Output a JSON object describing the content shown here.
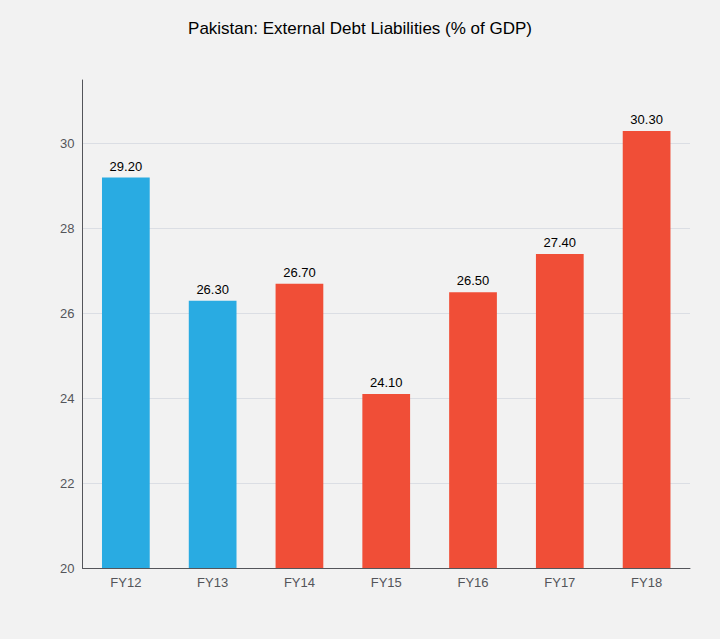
{
  "chart_data": {
    "type": "bar",
    "title": "Pakistan: External Debt Liabilities (% of GDP)",
    "categories": [
      "FY12",
      "FY13",
      "FY14",
      "FY15",
      "FY16",
      "FY17",
      "FY18"
    ],
    "values": [
      29.2,
      26.3,
      26.7,
      24.1,
      26.5,
      27.4,
      30.3
    ],
    "value_labels": [
      "29.20",
      "26.30",
      "26.70",
      "24.10",
      "26.50",
      "27.40",
      "30.30"
    ],
    "colors": [
      "#29ABE2",
      "#29ABE2",
      "#F04E37",
      "#F04E37",
      "#F04E37",
      "#F04E37",
      "#F04E37"
    ],
    "ylim": [
      20,
      31.5
    ],
    "yticks": [
      20,
      22,
      24,
      26,
      28,
      30
    ],
    "grid": true,
    "data_labels": true
  }
}
